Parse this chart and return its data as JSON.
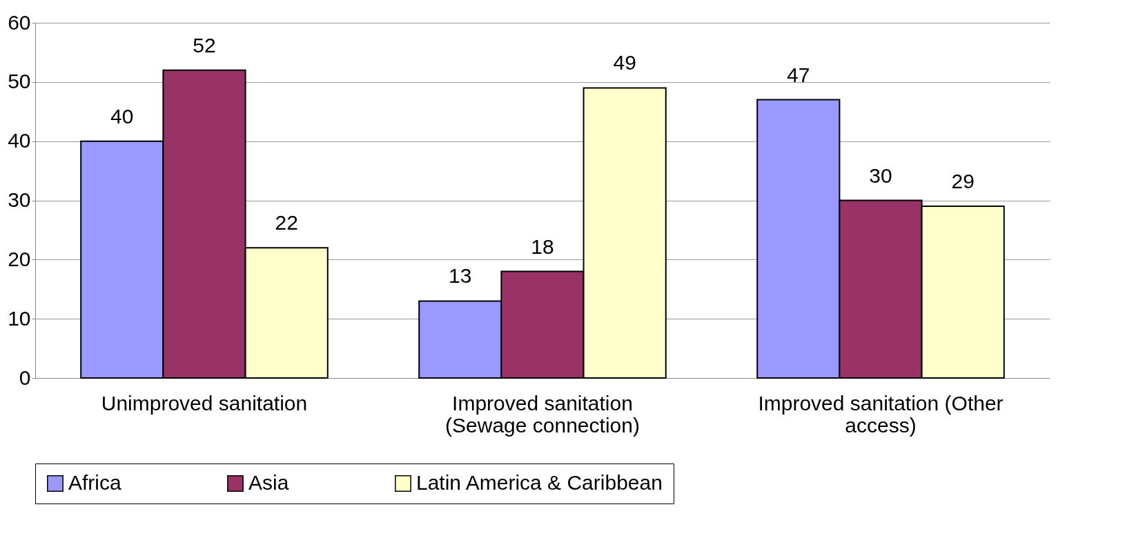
{
  "chart_data": {
    "type": "bar",
    "categories": [
      "Unimproved sanitation",
      "Improved sanitation (Sewage connection)",
      "Improved sanitation (Other access)"
    ],
    "series": [
      {
        "name": "Africa",
        "color": "#9999ff",
        "values": [
          40,
          13,
          47
        ]
      },
      {
        "name": "Asia",
        "color": "#993366",
        "values": [
          52,
          18,
          30
        ]
      },
      {
        "name": "Latin America & Caribbean",
        "color": "#ffffcc",
        "values": [
          22,
          49,
          29
        ]
      }
    ],
    "ylim": [
      0,
      60
    ],
    "yticks": [
      0,
      10,
      20,
      30,
      40,
      50,
      60
    ],
    "grid": "y",
    "legend": "bottom",
    "data_labels": true
  }
}
